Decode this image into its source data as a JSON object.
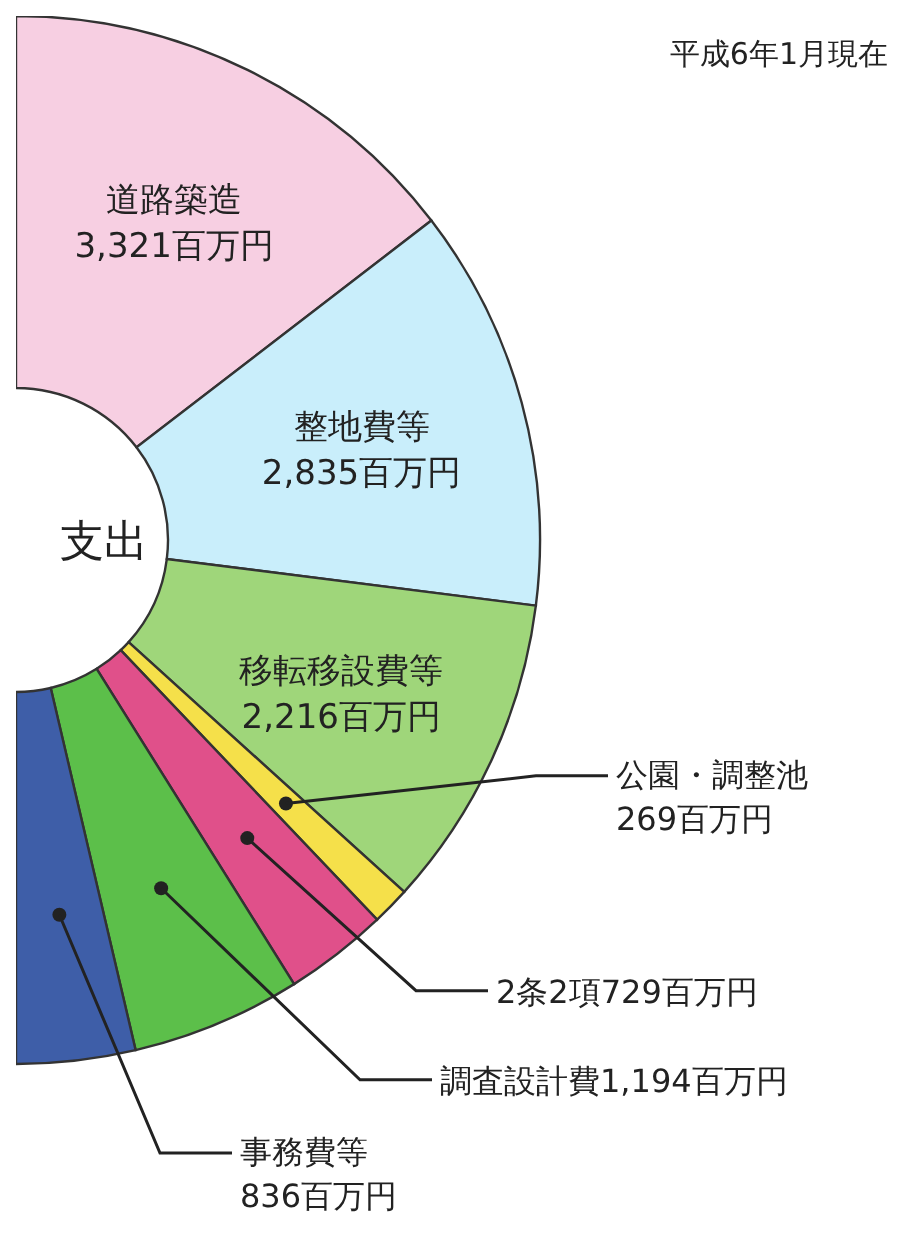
{
  "chart_data": {
    "type": "donut",
    "title": "支出",
    "subtitle": "平成6年1月現在",
    "categories": [
      "道路築造",
      "整地費等",
      "移転移設費等",
      "公園・調整池",
      "2条2項",
      "調査設計費",
      "事務費等"
    ],
    "values": [
      3321,
      2835,
      2216,
      269,
      729,
      1194,
      836
    ],
    "value_labels": [
      "3,321百万円",
      "2,835百万円",
      "2,216百万円",
      "269百万円",
      "729百万円",
      "1,194百万円",
      "836百万円"
    ],
    "colors": [
      "#f7cfe2",
      "#c9eefb",
      "#9fd67a",
      "#f5e04a",
      "#e0508a",
      "#5cbf4a",
      "#3e5ea8"
    ]
  }
}
